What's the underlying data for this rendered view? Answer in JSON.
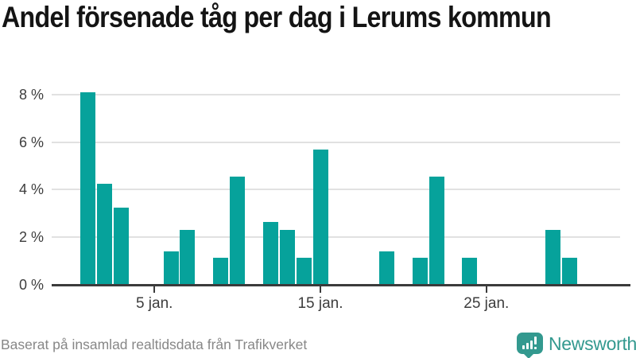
{
  "header": {
    "title": "Andel försenade tåg per dag i Lerums kommun"
  },
  "chart_data": {
    "type": "bar",
    "title": "Andel försenade tåg per dag i Lerums kommun",
    "x_days_january": [
      1,
      2,
      3,
      6,
      7,
      9,
      10,
      12,
      13,
      14,
      15,
      19,
      21,
      22,
      24,
      29,
      30
    ],
    "values": [
      8.1,
      4.25,
      3.25,
      1.4,
      2.3,
      1.15,
      4.55,
      2.65,
      2.3,
      1.15,
      5.7,
      1.4,
      1.15,
      4.55,
      1.15,
      2.3,
      1.15
    ],
    "x_tick_days": [
      5,
      15,
      25
    ],
    "x_tick_labels": [
      "5 jan.",
      "15 jan.",
      "25 jan."
    ],
    "y_tick_values": [
      0,
      2,
      4,
      6,
      8
    ],
    "y_tick_labels": [
      "0 %",
      "2 %",
      "4 %",
      "6 %",
      "8 %"
    ],
    "ylim": [
      0,
      8.5
    ],
    "grid": "horizontal",
    "legend": "none",
    "bar_color": "#06a29b"
  },
  "footer": {
    "source": "Baserat på insamlad realtidsdata från Trafikverket",
    "brand": "Newsworthy"
  },
  "colors": {
    "bar": "#06a29b",
    "logo": "#33998f",
    "axis": "#3b3b3b",
    "gridline": "#e1e1e1",
    "label_text": "#3d3d3d",
    "source_text": "#878787",
    "title_text": "#141414"
  }
}
